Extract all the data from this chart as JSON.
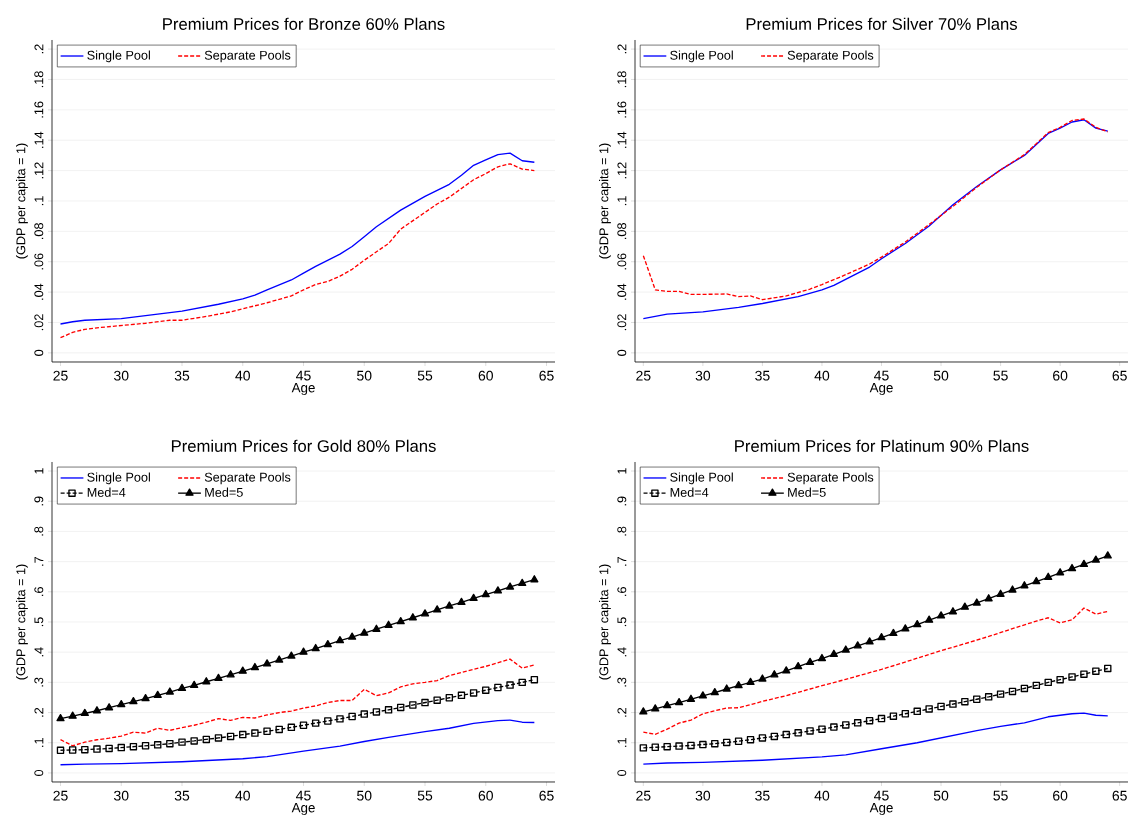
{
  "chart_data": [
    {
      "type": "line",
      "title": "Premium Prices for Bronze 60% Plans",
      "xlabel": "Age",
      "ylabel": "(GDP per capita = 1)",
      "xlim": [
        24.3,
        65.7
      ],
      "xticks": [
        25,
        30,
        35,
        40,
        45,
        50,
        55,
        60,
        65
      ],
      "ylim": [
        -0.006,
        0.206
      ],
      "yticks": [
        0,
        {
          "value": 0.02,
          "label": ".02"
        },
        {
          "value": 0.04,
          "label": ".04"
        },
        {
          "value": 0.06,
          "label": ".06"
        },
        {
          "value": 0.08,
          "label": ".08"
        },
        {
          "value": 0.1,
          "label": ".1"
        },
        {
          "value": 0.12,
          "label": ".12"
        },
        {
          "value": 0.14,
          "label": ".14"
        },
        {
          "value": 0.16,
          "label": ".16"
        },
        {
          "value": 0.18,
          "label": ".18"
        },
        {
          "value": 0.2,
          "label": ".2"
        }
      ],
      "grid": "y",
      "legend": "top left",
      "series": [
        {
          "name": "Single Pool",
          "color": "#0000ff",
          "line_style": "solid",
          "x": [
            25,
            26,
            27,
            30,
            33,
            35,
            38,
            40,
            41,
            42,
            44,
            45,
            46,
            48,
            49,
            50,
            51,
            53,
            55,
            57,
            58,
            59,
            60,
            61,
            62,
            63,
            64
          ],
          "values": [
            0.019,
            0.0205,
            0.0215,
            0.0225,
            0.0255,
            0.0275,
            0.032,
            0.0355,
            0.038,
            0.0415,
            0.048,
            0.0525,
            0.057,
            0.065,
            0.07,
            0.0765,
            0.083,
            0.094,
            0.103,
            0.111,
            0.117,
            0.1235,
            0.127,
            0.1305,
            0.1315,
            0.1265,
            0.1255
          ]
        },
        {
          "name": "Separate Pools",
          "color": "#ff0000",
          "line_style": "dashed",
          "x": [
            25,
            26,
            27,
            28,
            30,
            32,
            34,
            35,
            37,
            39,
            40,
            42,
            44,
            45,
            46,
            47,
            48,
            49,
            50,
            51,
            52,
            53,
            54,
            55,
            56,
            57,
            59,
            60,
            61,
            62,
            63,
            64
          ],
          "values": [
            0.01,
            0.0135,
            0.0155,
            0.0165,
            0.018,
            0.0195,
            0.0215,
            0.0215,
            0.024,
            0.027,
            0.029,
            0.033,
            0.0375,
            0.0415,
            0.045,
            0.047,
            0.0505,
            0.055,
            0.061,
            0.0665,
            0.072,
            0.0815,
            0.087,
            0.0925,
            0.098,
            0.1025,
            0.114,
            0.118,
            0.1225,
            0.1245,
            0.121,
            0.12
          ]
        }
      ]
    },
    {
      "type": "line",
      "title": "Premium Prices for Silver 70% Plans",
      "xlabel": "Age",
      "ylabel": "(GDP per capita = 1)",
      "xlim": [
        24.3,
        65.7
      ],
      "xticks": [
        25,
        30,
        35,
        40,
        45,
        50,
        55,
        60,
        65
      ],
      "ylim": [
        -0.006,
        0.206
      ],
      "yticks": [
        0,
        {
          "value": 0.02,
          "label": ".02"
        },
        {
          "value": 0.04,
          "label": ".04"
        },
        {
          "value": 0.06,
          "label": ".06"
        },
        {
          "value": 0.08,
          "label": ".08"
        },
        {
          "value": 0.1,
          "label": ".1"
        },
        {
          "value": 0.12,
          "label": ".12"
        },
        {
          "value": 0.14,
          "label": ".14"
        },
        {
          "value": 0.16,
          "label": ".16"
        },
        {
          "value": 0.18,
          "label": ".18"
        },
        {
          "value": 0.2,
          "label": ".2"
        }
      ],
      "grid": "y",
      "legend": "top left",
      "series": [
        {
          "name": "Single Pool",
          "color": "#0000ff",
          "line_style": "solid",
          "x": [
            25,
            26,
            27,
            30,
            33,
            35,
            38,
            40,
            41,
            44,
            45,
            47,
            49,
            50,
            51,
            53,
            55,
            57,
            59,
            60,
            61,
            62,
            63,
            64
          ],
          "values": [
            0.0225,
            0.024,
            0.0255,
            0.027,
            0.03,
            0.0325,
            0.037,
            0.0415,
            0.0445,
            0.0565,
            0.062,
            0.072,
            0.0835,
            0.0905,
            0.0975,
            0.1095,
            0.1205,
            0.13,
            0.1445,
            0.148,
            0.152,
            0.1535,
            0.148,
            0.146
          ]
        },
        {
          "name": "Separate Pools",
          "color": "#ff0000",
          "line_style": "dashed",
          "x": [
            25,
            26,
            27,
            28,
            29,
            30,
            32,
            33,
            34,
            35,
            37,
            39,
            40,
            42,
            44,
            45,
            47,
            49,
            50,
            51,
            53,
            55,
            57,
            59,
            60,
            61,
            62,
            63,
            64
          ],
          "values": [
            0.064,
            0.0415,
            0.0405,
            0.0405,
            0.0385,
            0.0385,
            0.0388,
            0.037,
            0.0375,
            0.035,
            0.0375,
            0.042,
            0.045,
            0.0515,
            0.0585,
            0.063,
            0.073,
            0.0845,
            0.0905,
            0.0965,
            0.109,
            0.1205,
            0.1305,
            0.145,
            0.1485,
            0.153,
            0.154,
            0.1485,
            0.1455
          ]
        }
      ]
    },
    {
      "type": "line",
      "title": "Premium Prices for Gold 80% Plans",
      "xlabel": "Age",
      "ylabel": "(GDP per capita = 1)",
      "xlim": [
        24.3,
        65.7
      ],
      "xticks": [
        25,
        30,
        35,
        40,
        45,
        50,
        55,
        60,
        65
      ],
      "ylim": [
        -0.03,
        1.03
      ],
      "yticks": [
        0,
        {
          "value": 0.1,
          "label": ".1"
        },
        {
          "value": 0.2,
          "label": ".2"
        },
        {
          "value": 0.3,
          "label": ".3"
        },
        {
          "value": 0.4,
          "label": ".4"
        },
        {
          "value": 0.5,
          "label": ".5"
        },
        {
          "value": 0.6,
          "label": ".6"
        },
        {
          "value": 0.7,
          "label": ".7"
        },
        {
          "value": 0.8,
          "label": ".8"
        },
        {
          "value": 0.9,
          "label": ".9"
        },
        1
      ],
      "grid": "y",
      "legend": "top left",
      "series": [
        {
          "name": "Single Pool",
          "color": "#0000ff",
          "line_style": "solid",
          "x": [
            25,
            27,
            30,
            35,
            40,
            42,
            45,
            48,
            50,
            52,
            55,
            57,
            59,
            61,
            62,
            63,
            64
          ],
          "values": [
            0.027,
            0.029,
            0.031,
            0.037,
            0.047,
            0.054,
            0.072,
            0.089,
            0.104,
            0.118,
            0.137,
            0.148,
            0.164,
            0.173,
            0.175,
            0.168,
            0.167
          ]
        },
        {
          "name": "Separate Pools",
          "color": "#ff0000",
          "line_style": "dashed",
          "x": [
            25,
            26,
            27,
            28,
            29,
            30,
            31,
            32,
            33,
            34,
            35,
            36,
            37,
            38,
            39,
            40,
            41,
            42,
            43,
            44,
            45,
            46,
            47,
            48,
            49,
            50,
            51,
            52,
            53,
            54,
            55,
            56,
            57,
            58,
            59,
            60,
            61,
            62,
            63,
            64
          ],
          "values": [
            0.11,
            0.09,
            0.102,
            0.11,
            0.115,
            0.122,
            0.135,
            0.132,
            0.148,
            0.141,
            0.15,
            0.158,
            0.168,
            0.18,
            0.174,
            0.184,
            0.182,
            0.192,
            0.2,
            0.205,
            0.215,
            0.222,
            0.233,
            0.24,
            0.24,
            0.277,
            0.256,
            0.265,
            0.285,
            0.295,
            0.3,
            0.306,
            0.322,
            0.333,
            0.343,
            0.353,
            0.365,
            0.377,
            0.347,
            0.358
          ]
        },
        {
          "name": "Med=4",
          "color": "#000000",
          "line_style": "dashed",
          "marker": "square",
          "x": [
            25,
            26,
            27,
            28,
            29,
            30,
            31,
            32,
            33,
            34,
            35,
            36,
            37,
            38,
            39,
            40,
            41,
            42,
            43,
            44,
            45,
            46,
            47,
            48,
            49,
            50,
            51,
            52,
            53,
            54,
            55,
            56,
            57,
            58,
            59,
            60,
            61,
            62,
            63,
            64
          ],
          "values": [
            0.075,
            0.076,
            0.077,
            0.079,
            0.081,
            0.084,
            0.087,
            0.09,
            0.093,
            0.097,
            0.102,
            0.106,
            0.111,
            0.116,
            0.121,
            0.127,
            0.132,
            0.138,
            0.144,
            0.151,
            0.158,
            0.165,
            0.172,
            0.179,
            0.187,
            0.195,
            0.202,
            0.209,
            0.217,
            0.225,
            0.233,
            0.241,
            0.249,
            0.257,
            0.265,
            0.274,
            0.283,
            0.291,
            0.3,
            0.309
          ]
        },
        {
          "name": "Med=5",
          "color": "#000000",
          "line_style": "solid",
          "marker": "triangle",
          "x": [
            25,
            26,
            27,
            28,
            29,
            30,
            31,
            32,
            33,
            34,
            35,
            36,
            37,
            38,
            39,
            40,
            41,
            42,
            43,
            44,
            45,
            46,
            47,
            48,
            49,
            50,
            51,
            52,
            53,
            54,
            55,
            56,
            57,
            58,
            59,
            60,
            61,
            62,
            63,
            64
          ],
          "values": [
            0.18,
            0.188,
            0.197,
            0.206,
            0.216,
            0.226,
            0.236,
            0.246,
            0.257,
            0.268,
            0.28,
            0.29,
            0.302,
            0.313,
            0.325,
            0.337,
            0.349,
            0.361,
            0.374,
            0.387,
            0.4,
            0.412,
            0.425,
            0.438,
            0.45,
            0.463,
            0.476,
            0.489,
            0.501,
            0.514,
            0.527,
            0.54,
            0.553,
            0.565,
            0.578,
            0.591,
            0.603,
            0.616,
            0.628,
            0.64
          ]
        }
      ]
    },
    {
      "type": "line",
      "title": "Premium Prices for Platinum 90% Plans",
      "xlabel": "Age",
      "ylabel": "(GDP per capita = 1)",
      "xlim": [
        24.3,
        65.7
      ],
      "xticks": [
        25,
        30,
        35,
        40,
        45,
        50,
        55,
        60,
        65
      ],
      "ylim": [
        -0.03,
        1.03
      ],
      "yticks": [
        0,
        {
          "value": 0.1,
          "label": ".1"
        },
        {
          "value": 0.2,
          "label": ".2"
        },
        {
          "value": 0.3,
          "label": ".3"
        },
        {
          "value": 0.4,
          "label": ".4"
        },
        {
          "value": 0.5,
          "label": ".5"
        },
        {
          "value": 0.6,
          "label": ".6"
        },
        {
          "value": 0.7,
          "label": ".7"
        },
        {
          "value": 0.8,
          "label": ".8"
        },
        {
          "value": 0.9,
          "label": ".9"
        },
        1
      ],
      "grid": "y",
      "legend": "top left",
      "series": [
        {
          "name": "Single Pool",
          "color": "#0000ff",
          "line_style": "solid",
          "x": [
            25,
            27,
            30,
            35,
            40,
            42,
            45,
            48,
            50,
            53,
            55,
            57,
            59,
            61,
            62,
            63,
            64
          ],
          "values": [
            0.029,
            0.033,
            0.035,
            0.042,
            0.053,
            0.06,
            0.08,
            0.1,
            0.116,
            0.14,
            0.154,
            0.166,
            0.186,
            0.196,
            0.198,
            0.191,
            0.189
          ]
        },
        {
          "name": "Separate Pools",
          "color": "#ff0000",
          "line_style": "dashed",
          "x": [
            25,
            26,
            27,
            28,
            29,
            30,
            31,
            32,
            33,
            34,
            35,
            37,
            39,
            40,
            42,
            44,
            45,
            46,
            48,
            50,
            52,
            54,
            56,
            58,
            59,
            60,
            61,
            62,
            63,
            64
          ],
          "values": [
            0.135,
            0.128,
            0.145,
            0.165,
            0.175,
            0.196,
            0.206,
            0.215,
            0.216,
            0.226,
            0.237,
            0.256,
            0.278,
            0.289,
            0.31,
            0.332,
            0.343,
            0.355,
            0.38,
            0.405,
            0.428,
            0.452,
            0.478,
            0.503,
            0.514,
            0.497,
            0.507,
            0.546,
            0.526,
            0.535
          ]
        },
        {
          "name": "Med=4",
          "color": "#000000",
          "line_style": "dashed",
          "marker": "square",
          "x": [
            25,
            26,
            27,
            28,
            29,
            30,
            31,
            32,
            33,
            34,
            35,
            36,
            37,
            38,
            39,
            40,
            41,
            42,
            43,
            44,
            45,
            46,
            47,
            48,
            49,
            50,
            51,
            52,
            53,
            54,
            55,
            56,
            57,
            58,
            59,
            60,
            61,
            62,
            63,
            64
          ],
          "values": [
            0.083,
            0.085,
            0.087,
            0.089,
            0.091,
            0.094,
            0.097,
            0.101,
            0.105,
            0.11,
            0.116,
            0.121,
            0.127,
            0.133,
            0.139,
            0.145,
            0.152,
            0.159,
            0.166,
            0.173,
            0.18,
            0.188,
            0.196,
            0.204,
            0.212,
            0.22,
            0.228,
            0.236,
            0.244,
            0.252,
            0.261,
            0.27,
            0.28,
            0.29,
            0.3,
            0.309,
            0.318,
            0.327,
            0.337,
            0.346
          ]
        },
        {
          "name": "Med=5",
          "color": "#000000",
          "line_style": "solid",
          "marker": "triangle",
          "x": [
            25,
            26,
            27,
            28,
            29,
            30,
            31,
            32,
            33,
            34,
            35,
            36,
            37,
            38,
            39,
            40,
            41,
            42,
            43,
            44,
            45,
            46,
            47,
            48,
            49,
            50,
            51,
            52,
            53,
            54,
            55,
            56,
            57,
            58,
            59,
            60,
            61,
            62,
            63,
            64
          ],
          "values": [
            0.202,
            0.212,
            0.223,
            0.233,
            0.244,
            0.255,
            0.266,
            0.278,
            0.289,
            0.3,
            0.311,
            0.325,
            0.338,
            0.352,
            0.366,
            0.379,
            0.393,
            0.407,
            0.421,
            0.434,
            0.448,
            0.462,
            0.477,
            0.491,
            0.506,
            0.52,
            0.534,
            0.549,
            0.563,
            0.577,
            0.592,
            0.606,
            0.62,
            0.634,
            0.648,
            0.663,
            0.677,
            0.691,
            0.705,
            0.719
          ]
        }
      ]
    }
  ]
}
